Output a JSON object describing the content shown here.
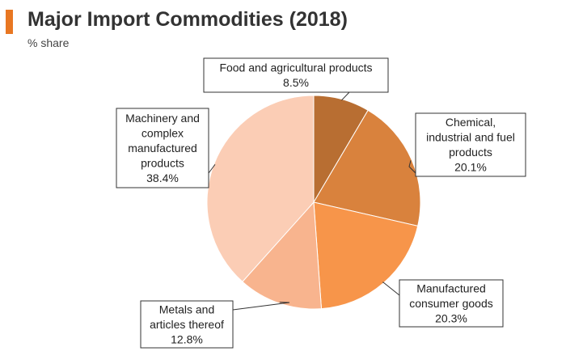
{
  "header": {
    "accent_color": "#e87722",
    "title": "Major Import Commodities (2018)",
    "subtitle": "% share"
  },
  "chart_data": {
    "type": "pie",
    "title": "Major Import Commodities (2018)",
    "subtitle": "% share",
    "slices": [
      {
        "label": "Food and agricultural products",
        "label_lines": [
          "Food and agricultural products"
        ],
        "value": 8.5,
        "value_label": "8.5%",
        "color": "#b86e32"
      },
      {
        "label": "Chemical, industrial and fuel products",
        "label_lines": [
          "Chemical,",
          "industrial and fuel",
          "products"
        ],
        "value": 20.1,
        "value_label": "20.1%",
        "color": "#d9823d"
      },
      {
        "label": "Manufactured consumer goods",
        "label_lines": [
          "Manufactured",
          "consumer goods"
        ],
        "value": 20.3,
        "value_label": "20.3%",
        "color": "#f7954a"
      },
      {
        "label": "Metals and articles thereof",
        "label_lines": [
          "Metals and",
          "articles thereof"
        ],
        "value": 12.8,
        "value_label": "12.8%",
        "color": "#f8b48e"
      },
      {
        "label": "Machinery and complex manufactured products",
        "label_lines": [
          "Machinery and",
          "complex",
          "manufactured",
          "products"
        ],
        "value": 38.4,
        "value_label": "38.4%",
        "color": "#fbcdb5"
      }
    ],
    "start": "12 o'clock",
    "direction": "clockwise",
    "legend": "none"
  }
}
